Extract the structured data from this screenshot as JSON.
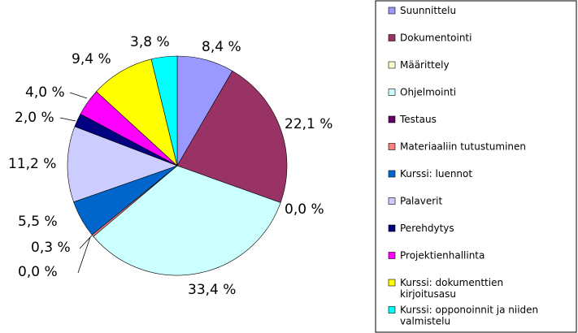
{
  "chart_data": {
    "type": "pie",
    "title": "",
    "legend_position": "right",
    "slices": [
      {
        "name": "Suunnittelu",
        "value": 8.4,
        "label": "8,4 %",
        "color": "#9999ff"
      },
      {
        "name": "Dokumentointi",
        "value": 22.1,
        "label": "22,1 %",
        "color": "#993366"
      },
      {
        "name": "Määrittely",
        "value": 0.0,
        "label": "0,0 %",
        "color": "#ffffcc"
      },
      {
        "name": "Ohjelmointi",
        "value": 33.4,
        "label": "33,4 %",
        "color": "#ccffff"
      },
      {
        "name": "Testaus",
        "value": 0.0,
        "label": "0,0 %",
        "color": "#660066"
      },
      {
        "name": "Materiaaliin tutustuminen",
        "value": 0.3,
        "label": "0,3 %",
        "color": "#ff8080"
      },
      {
        "name": "Kurssi: luennot",
        "value": 5.5,
        "label": "5,5 %",
        "color": "#0066cc"
      },
      {
        "name": "Palaverit",
        "value": 11.2,
        "label": "11,2 %",
        "color": "#ccccff"
      },
      {
        "name": "Perehdytys",
        "value": 2.0,
        "label": "2,0 %",
        "color": "#000080"
      },
      {
        "name": "Projektienhallinta",
        "value": 4.0,
        "label": "4,0 %",
        "color": "#ff00ff"
      },
      {
        "name": "Kurssi: dokumenttien kirjoitusasu",
        "value": 9.4,
        "label": "9,4 %",
        "color": "#ffff00"
      },
      {
        "name": "Kurssi: opponoinnit ja niiden valmistelu",
        "value": 3.8,
        "label": "3,8 %",
        "color": "#00ffff"
      }
    ]
  }
}
